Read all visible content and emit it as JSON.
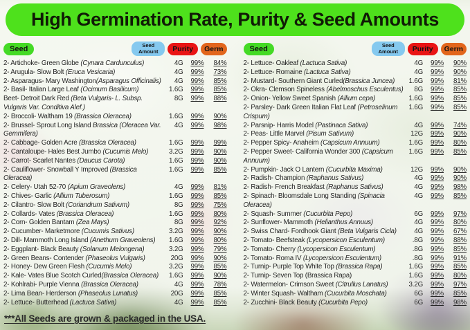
{
  "title": "High Germination Rate, Purity & Seed Amounts",
  "footer": "***All Seeds are grown & packaged in the USA.",
  "colors": {
    "banner_green": "#4ee11c",
    "seed_pill_green": "#44da25",
    "amount_pill_blue": "#85c9ef",
    "purity_pill_red": "#e91414",
    "germ_pill_orange": "#e2661c",
    "text": "#262626"
  },
  "column_headers": {
    "seed": "Seed",
    "amount": "Seed Amount",
    "purity": "Purity",
    "germ": "Germ"
  },
  "columns": [
    {
      "rows": [
        {
          "label": "2- Artichoke- Green Globe ",
          "latin": "(Cynara Cardunculus)",
          "amount": "4G",
          "purity": "99%",
          "germ": "84%"
        },
        {
          "label": "2- Arugula- Slow Bolt ",
          "latin": "(Eruca Vesicaria)",
          "amount": "4G",
          "purity": "99%",
          "germ": "73%"
        },
        {
          "label": "2- Asparagus- Mary Washington",
          "latin": "(Asparagus Officinalis)",
          "amount": "4G",
          "purity": "99%",
          "germ": "85%"
        },
        {
          "label": "2- Basil- Italian Large Leaf ",
          "latin": "(Ocimum Basilicum)",
          "amount": "1.6G",
          "purity": "99%",
          "germ": "85%"
        },
        {
          "label": "Beet- Detroit Dark Red ",
          "latin": "(Beta Vulgaris- L. Subsp. Vulgaris Var. Conditiva Alef.)",
          "amount": "8G",
          "purity": "99%",
          "germ": "88%"
        },
        {
          "label": "2- Broccoli- Waltham 19 ",
          "latin": "(Brassica Oleracea)",
          "amount": "1.6G",
          "purity": "99%",
          "germ": "90%"
        },
        {
          "label": "2- Brussel- Sprout Long Island ",
          "latin": "Brassica (Oleracea Var. Gemmifera)",
          "amount": "4G",
          "purity": "99%",
          "germ": "98%"
        },
        {
          "label": "2- Cabbage- Golden Acre ",
          "latin": "(Brassica Oleracea)",
          "amount": "1.6G",
          "purity": "99%",
          "germ": "99%"
        },
        {
          "label": "2- Cantaloupe- Hales Best Jumbo ",
          "latin": "(Cucumis Melo)",
          "amount": "3.2G",
          "purity": "99%",
          "germ": "90%"
        },
        {
          "label": "2- Carrot- Scarlet Nantes ",
          "latin": "(Daucus Carota)",
          "amount": "1.6G",
          "purity": "99%",
          "germ": "90%"
        },
        {
          "label": "2- Cauliflower- Snowball Y Improved ",
          "latin": "(Brassica Oleracea)",
          "amount": "1.6G",
          "purity": "99%",
          "germ": "85%"
        },
        {
          "label": "2- Celery- Utah 52-70 ",
          "latin": "(Apium Graveolens)",
          "amount": "4G",
          "purity": "99%",
          "germ": "81%"
        },
        {
          "label": "2- Chives- Garlic ",
          "latin": "(Allium Tuberosum)",
          "amount": "1.6G",
          "purity": "99%",
          "germ": "85%"
        },
        {
          "label": "2- Cilantro- Slow Bolt ",
          "latin": "(Coriandrum Sativum)",
          "amount": "8G",
          "purity": "99%",
          "germ": "75%"
        },
        {
          "label": "2- Collards- Vates ",
          "latin": "(Brassica Oleracea)",
          "amount": "1.6G",
          "purity": "99%",
          "germ": "80%"
        },
        {
          "label": "2- Corn- Golden Bantam ",
          "latin": "(Zea Mays)",
          "amount": "8G",
          "purity": "99%",
          "germ": "92%"
        },
        {
          "label": "2- Cucumber- Marketmore ",
          "latin": "(Cucumis Sativus)",
          "amount": "3.2G",
          "purity": "99%",
          "germ": "90%"
        },
        {
          "label": "2- Dill- Mammoth Long Island ",
          "latin": "(Anethum Graveolens)",
          "amount": "1.6G",
          "purity": "99%",
          "germ": "80%"
        },
        {
          "label": "2- Eggplant- Black Beauty ",
          "latin": "(Solanum Melongena)",
          "amount": "3.2G",
          "purity": "99%",
          "germ": "79%"
        },
        {
          "label": "2- Green Beans- Contender ",
          "latin": "(Phaseolus Vulgaris)",
          "amount": "20G",
          "purity": "99%",
          "germ": "90%"
        },
        {
          "label": "2- Honey- Dew Green Flesh ",
          "latin": "(Cucumis Melo)",
          "amount": "3.2G",
          "purity": "99%",
          "germ": "85%"
        },
        {
          "label": "2- Kale- Vates Blue Scotch Curled",
          "latin": "(Brassica Oleracea)",
          "amount": "1.6G",
          "purity": "99%",
          "germ": "90%"
        },
        {
          "label": "2- Kohlrabi- Purple Vienna ",
          "latin": "(Brassica Oleracea)",
          "amount": "4G",
          "purity": "99%",
          "germ": "78%"
        },
        {
          "label": "2- Lima Bean- Herderson ",
          "latin": "(Phaseolus Lunatus)",
          "amount": "20G",
          "purity": "99%",
          "germ": "85%"
        },
        {
          "label": "2- Lettuce- Butterhead ",
          "latin": "(Lactuca Sativa)",
          "amount": "4G",
          "purity": "99%",
          "germ": "85%"
        }
      ]
    },
    {
      "rows": [
        {
          "label": "2- Lettuce- Oakleaf ",
          "latin": "(Lactuca Sativa)",
          "amount": "4G",
          "purity": "99%",
          "germ": "90%"
        },
        {
          "label": "2- Lettuce- Romaine ",
          "latin": "(Lactuca Sativa)",
          "amount": "4G",
          "purity": "99%",
          "germ": "90%"
        },
        {
          "label": "2- Mustard- Southern Giant Curled",
          "latin": "(Brassica Juncea)",
          "amount": "1.6G",
          "purity": "99%",
          "germ": "81%"
        },
        {
          "label": "2- Okra- Clemson Spineless ",
          "latin": "(Abelmoschus Esculentus)",
          "amount": "8G",
          "purity": "99%",
          "germ": "85%"
        },
        {
          "label": "2- Onion- Yellow Sweet Spanish ",
          "latin": "(Allium cepa)",
          "amount": "1.6G",
          "purity": "99%",
          "germ": "85%"
        },
        {
          "label": "2- Parsley- Dark Green Italian Flat Leaf ",
          "latin": "(Petroselinum Crispum)",
          "amount": "1.6G",
          "purity": "99%",
          "germ": "85%"
        },
        {
          "label": "2- Parsnip- Harris Model ",
          "latin": "(Pastinaca Sativa)",
          "amount": "4G",
          "purity": "99%",
          "germ": "74%"
        },
        {
          "label": "2- Peas- Little Marvel ",
          "latin": "(Pisum Sativum)",
          "amount": "12G",
          "purity": "99%",
          "germ": "90%"
        },
        {
          "label": "2- Pepper Spicy- Anaheim ",
          "latin": "(Capsicum Annuum)",
          "amount": "1.6G",
          "purity": "99%",
          "germ": "80%"
        },
        {
          "label": "2- Pepper Sweet- California Wonder 300 ",
          "latin": "(Capsicum Annuum)",
          "amount": "1.6G",
          "purity": "99%",
          "germ": "85%"
        },
        {
          "label": "2- Pumpkin- Jack O Lantern ",
          "latin": "(Cucurbita Maxima)",
          "amount": "12G",
          "purity": "99%",
          "germ": "90%"
        },
        {
          "label": "2- Radish- Champion ",
          "latin": "(Raphanus Sativus)",
          "amount": "4G",
          "purity": "99%",
          "germ": "90%"
        },
        {
          "label": "2- Radish- French Breakfast ",
          "latin": "(Raphanus Sativus)",
          "amount": "4G",
          "purity": "99%",
          "germ": "98%"
        },
        {
          "label": "2- Spinach- Bloomsdale Long Standing ",
          "latin": "(Spinacia Oleracea)",
          "amount": "4G",
          "purity": "99%",
          "germ": "85%"
        },
        {
          "label": "2- Squash- Summer ",
          "latin": "(Cucurbita Pepo)",
          "amount": "6G",
          "purity": "99%",
          "germ": "97%"
        },
        {
          "label": "2- Sunflower- Mammoth ",
          "latin": "(Helianthus Annuus)",
          "amount": "4G",
          "purity": "99%",
          "germ": "80%"
        },
        {
          "label": "2- Swiss Chard- Fordhook Giant ",
          "latin": "(Beta Vulgaris Cicla)",
          "amount": "4G",
          "purity": "99%",
          "germ": "67%"
        },
        {
          "label": "2- Tomato- Beefsteak ",
          "latin": "(Lycopersicon Esculentum)",
          "amount": ".8G",
          "purity": "99%",
          "germ": "88%"
        },
        {
          "label": "2- Tomato- Cherry ",
          "latin": "(Lycopersicon Esculentum)",
          "amount": ".8G",
          "purity": "99%",
          "germ": "85%"
        },
        {
          "label": "2- Tomato- Roma IV ",
          "latin": "(Lycopersicon Esculentum)",
          "amount": ".8G",
          "purity": "99%",
          "germ": "91%"
        },
        {
          "label": "2- Turnip- Purple Top White Top ",
          "latin": "(Brassica Rapa)",
          "amount": "1.6G",
          "purity": "99%",
          "germ": "85%"
        },
        {
          "label": "2- Turnip- Seven Top (Brassica Rapa)",
          "latin": "",
          "amount": "1.6G",
          "purity": "99%",
          "germ": "80%"
        },
        {
          "label": "2- Watermelon- Crimson Sweet ",
          "latin": "(Citrullus Lanatus)",
          "amount": "3.2G",
          "purity": "99%",
          "germ": "97%"
        },
        {
          "label": "2- Winter Squash- Waltham ",
          "latin": "(Cucurbita Moschata)",
          "amount": "6G",
          "purity": "99%",
          "germ": "85%"
        },
        {
          "label": "2- Zucchini- Black Beauty ",
          "latin": "(Cucurbita Pepo)",
          "amount": "6G",
          "purity": "99%",
          "germ": "98%"
        }
      ]
    }
  ]
}
